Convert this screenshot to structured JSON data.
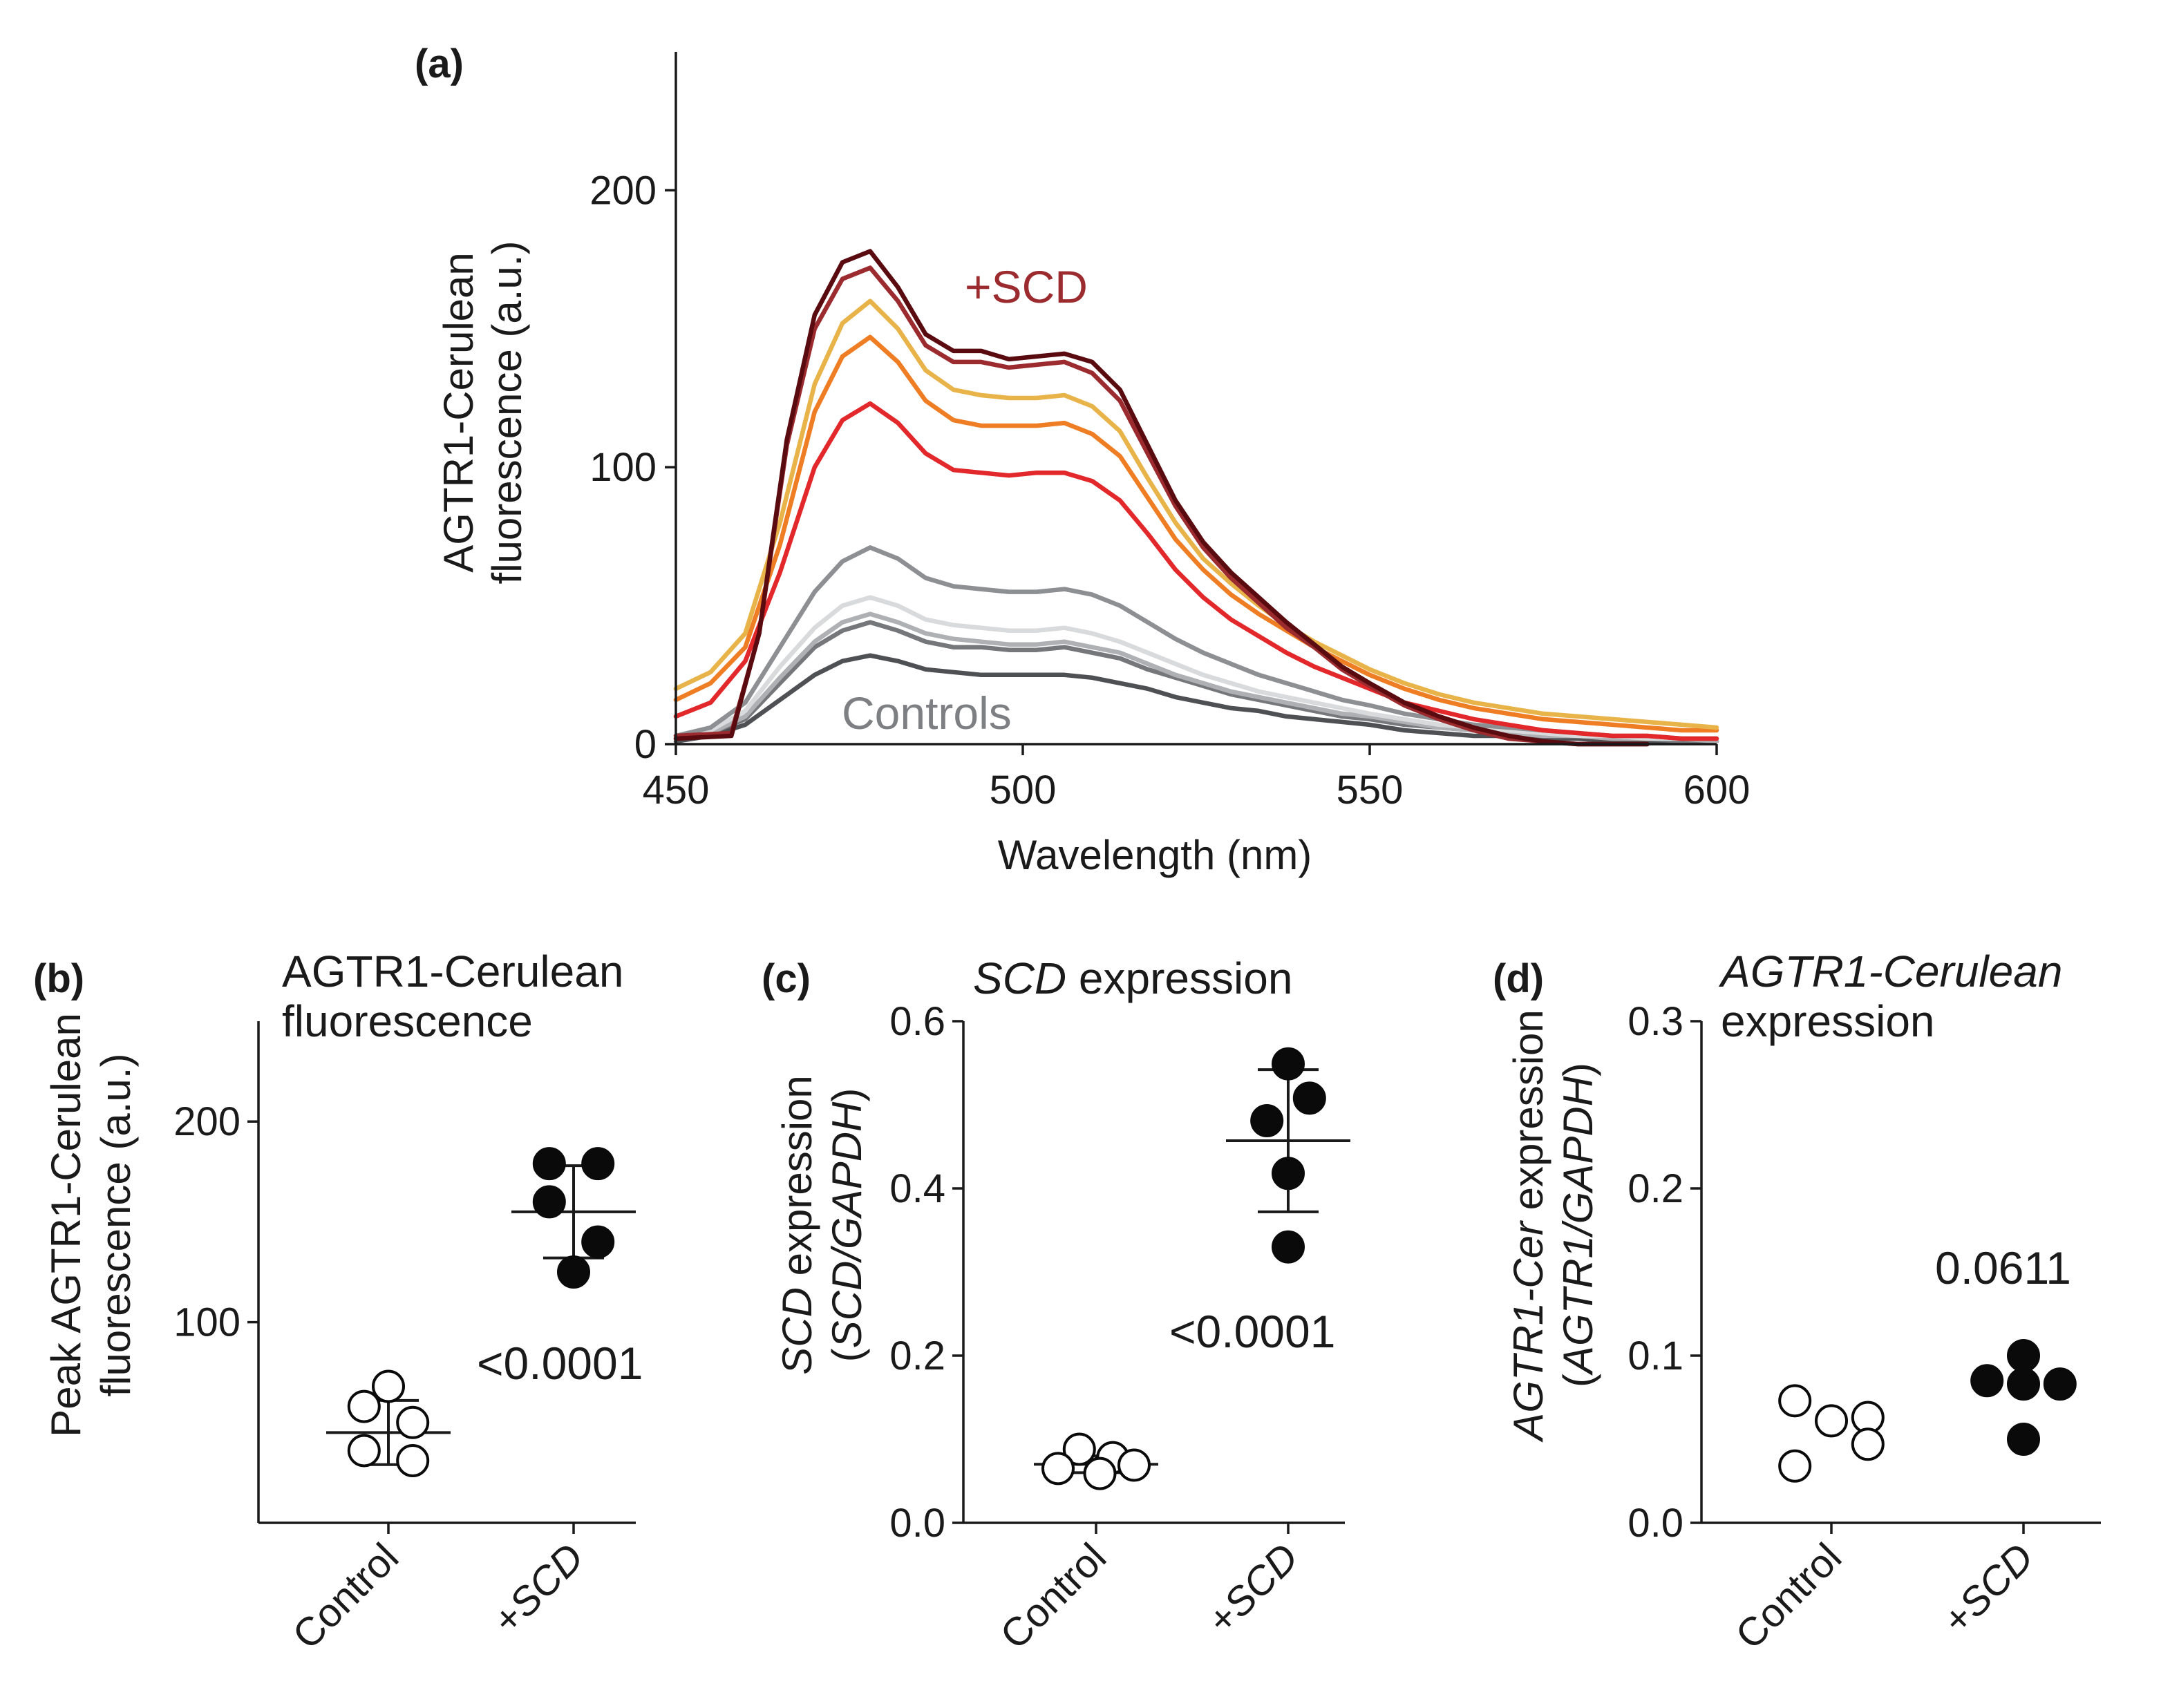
{
  "chart_data": [
    {
      "panel": "(a)",
      "type": "line",
      "xlabel": "Wavelength (nm)",
      "ylabel": [
        "AGTR1-Cerulean",
        "fluorescence (a.u.)"
      ],
      "xlim": [
        450,
        600
      ],
      "ylim": [
        0,
        250
      ],
      "xticks": [
        "450",
        "500",
        "550",
        "600"
      ],
      "yticks": [
        "0",
        "100",
        "200"
      ],
      "annotations": {
        "scd": "+SCD",
        "controls": "Controls"
      },
      "series": [
        {
          "name": "+SCD 1",
          "group": "SCD",
          "color": "#5a0b0f",
          "peak": 178,
          "shoulder": 142,
          "x": [
            450,
            458,
            462,
            466,
            470,
            474,
            478,
            482,
            486,
            490,
            494,
            498,
            502,
            506,
            510,
            514,
            518,
            522,
            526,
            530,
            534,
            538,
            542,
            546,
            550,
            555,
            560,
            565,
            570,
            575,
            580,
            585,
            590
          ],
          "y": [
            2,
            3,
            40,
            110,
            155,
            174,
            178,
            165,
            148,
            142,
            142,
            139,
            140,
            141,
            138,
            128,
            108,
            88,
            73,
            62,
            53,
            44,
            36,
            28,
            22,
            15,
            10,
            6,
            3,
            1,
            0,
            0,
            0
          ]
        },
        {
          "name": "+SCD 2",
          "group": "SCD",
          "color": "#9b2b2e",
          "peak": 172,
          "shoulder": 138,
          "x": [
            450,
            458,
            462,
            466,
            470,
            474,
            478,
            482,
            486,
            490,
            494,
            498,
            502,
            506,
            510,
            514,
            518,
            522,
            526,
            530,
            534,
            538,
            542,
            546,
            550,
            555,
            560,
            565,
            570,
            575,
            580,
            585,
            590
          ],
          "y": [
            3,
            4,
            40,
            108,
            150,
            168,
            172,
            160,
            144,
            138,
            138,
            136,
            137,
            138,
            134,
            124,
            105,
            86,
            71,
            60,
            51,
            42,
            35,
            27,
            21,
            14,
            9,
            5,
            2,
            1,
            0,
            0,
            0
          ]
        },
        {
          "name": "+SCD 3",
          "group": "SCD",
          "color": "#e8b44a",
          "peak": 160,
          "shoulder": 125,
          "x": [
            450,
            455,
            460,
            465,
            470,
            474,
            478,
            482,
            486,
            490,
            494,
            498,
            502,
            506,
            510,
            514,
            518,
            522,
            526,
            530,
            534,
            538,
            542,
            546,
            550,
            555,
            560,
            565,
            570,
            575,
            580,
            585,
            590,
            595,
            600
          ],
          "y": [
            20,
            26,
            40,
            80,
            130,
            152,
            160,
            150,
            135,
            128,
            126,
            125,
            125,
            126,
            122,
            113,
            96,
            80,
            67,
            58,
            50,
            43,
            37,
            32,
            27,
            22,
            18,
            15,
            13,
            11,
            10,
            9,
            8,
            7,
            6
          ]
        },
        {
          "name": "+SCD 4",
          "group": "SCD",
          "color": "#ee7d24",
          "peak": 147,
          "shoulder": 115,
          "x": [
            450,
            455,
            460,
            465,
            470,
            474,
            478,
            482,
            486,
            490,
            494,
            498,
            502,
            506,
            510,
            514,
            518,
            522,
            526,
            530,
            534,
            538,
            542,
            546,
            550,
            555,
            560,
            565,
            570,
            575,
            580,
            585,
            590,
            595,
            600
          ],
          "y": [
            16,
            22,
            35,
            72,
            120,
            140,
            147,
            138,
            124,
            117,
            115,
            115,
            115,
            116,
            112,
            104,
            89,
            74,
            63,
            54,
            47,
            41,
            35,
            30,
            25,
            20,
            16,
            13,
            11,
            9,
            8,
            7,
            6,
            5,
            5
          ]
        },
        {
          "name": "+SCD 5",
          "group": "SCD",
          "color": "#e2282a",
          "peak": 123,
          "shoulder": 98,
          "x": [
            450,
            455,
            460,
            465,
            470,
            474,
            478,
            482,
            486,
            490,
            494,
            498,
            502,
            506,
            510,
            514,
            518,
            522,
            526,
            530,
            534,
            538,
            542,
            546,
            550,
            555,
            560,
            565,
            570,
            575,
            580,
            585,
            590,
            595,
            600
          ],
          "y": [
            10,
            15,
            30,
            62,
            100,
            117,
            123,
            116,
            105,
            99,
            98,
            97,
            98,
            98,
            95,
            88,
            76,
            63,
            53,
            45,
            39,
            33,
            28,
            24,
            20,
            15,
            12,
            9,
            7,
            5,
            4,
            3,
            3,
            2,
            2
          ]
        },
        {
          "name": "Control 1",
          "group": "Control",
          "color": "#8d8f93",
          "peak": 71,
          "shoulder": 56,
          "x": [
            450,
            455,
            460,
            465,
            470,
            474,
            478,
            482,
            486,
            490,
            494,
            498,
            502,
            506,
            510,
            514,
            518,
            522,
            526,
            530,
            534,
            538,
            542,
            546,
            550,
            555,
            560,
            565,
            570,
            575,
            580,
            585,
            590,
            595,
            600
          ],
          "y": [
            3,
            6,
            15,
            35,
            55,
            66,
            71,
            67,
            60,
            57,
            56,
            55,
            55,
            56,
            54,
            50,
            44,
            38,
            33,
            29,
            25,
            22,
            19,
            16,
            14,
            11,
            9,
            7,
            6,
            5,
            4,
            3,
            3,
            2,
            2
          ]
        },
        {
          "name": "Control 2",
          "group": "Control",
          "color": "#d9dadb",
          "peak": 53,
          "shoulder": 42,
          "x": [
            450,
            455,
            460,
            465,
            470,
            474,
            478,
            482,
            486,
            490,
            494,
            498,
            502,
            506,
            510,
            514,
            518,
            522,
            526,
            530,
            534,
            538,
            542,
            546,
            550,
            555,
            560,
            565,
            570,
            575,
            580,
            585,
            590,
            595,
            600
          ],
          "y": [
            2,
            5,
            12,
            28,
            42,
            50,
            53,
            50,
            45,
            43,
            42,
            41,
            41,
            42,
            40,
            37,
            33,
            29,
            25,
            22,
            19,
            17,
            15,
            13,
            11,
            9,
            7,
            6,
            5,
            4,
            3,
            3,
            2,
            2,
            2
          ]
        },
        {
          "name": "Control 3",
          "group": "Control",
          "color": "#aeb0b3",
          "peak": 47,
          "shoulder": 37,
          "x": [
            450,
            455,
            460,
            465,
            470,
            474,
            478,
            482,
            486,
            490,
            494,
            498,
            502,
            506,
            510,
            514,
            518,
            522,
            526,
            530,
            534,
            538,
            542,
            546,
            550,
            555,
            560,
            565,
            570,
            575,
            580,
            585,
            590,
            595,
            600
          ],
          "y": [
            2,
            4,
            10,
            24,
            37,
            44,
            47,
            44,
            40,
            38,
            37,
            36,
            36,
            37,
            35,
            33,
            29,
            25,
            22,
            19,
            17,
            15,
            13,
            11,
            10,
            8,
            6,
            5,
            4,
            3,
            3,
            2,
            2,
            2,
            1
          ]
        },
        {
          "name": "Control 4",
          "group": "Control",
          "color": "#75777b",
          "peak": 44,
          "shoulder": 35,
          "x": [
            450,
            455,
            460,
            465,
            470,
            474,
            478,
            482,
            486,
            490,
            494,
            498,
            502,
            506,
            510,
            514,
            518,
            522,
            526,
            530,
            534,
            538,
            542,
            546,
            550,
            555,
            560,
            565,
            570,
            575,
            580,
            585,
            590,
            595,
            600
          ],
          "y": [
            2,
            4,
            9,
            22,
            35,
            41,
            44,
            41,
            37,
            35,
            35,
            34,
            34,
            35,
            33,
            31,
            27,
            24,
            21,
            18,
            16,
            14,
            12,
            10,
            9,
            7,
            6,
            5,
            4,
            3,
            3,
            2,
            2,
            1,
            1
          ]
        },
        {
          "name": "Control 5",
          "group": "Control",
          "color": "#4e5054",
          "peak": 32,
          "shoulder": 25,
          "x": [
            450,
            455,
            460,
            465,
            470,
            474,
            478,
            482,
            486,
            490,
            494,
            498,
            502,
            506,
            510,
            514,
            518,
            522,
            526,
            530,
            534,
            538,
            542,
            546,
            550,
            555,
            560,
            565,
            570,
            575,
            580,
            585,
            590,
            595,
            600
          ],
          "y": [
            1,
            3,
            7,
            16,
            25,
            30,
            32,
            30,
            27,
            26,
            25,
            25,
            25,
            25,
            24,
            22,
            20,
            17,
            15,
            13,
            12,
            10,
            9,
            8,
            7,
            5,
            4,
            3,
            3,
            2,
            2,
            1,
            1,
            1,
            1
          ]
        }
      ]
    },
    {
      "panel": "(b)",
      "type": "scatter",
      "title": [
        "AGTR1-Cerulean",
        "fluorescence"
      ],
      "ylabel": [
        "Peak AGTR1-Cerulean",
        "fluorescence (a.u.)"
      ],
      "ylim": [
        0,
        250
      ],
      "yticks": [
        "100",
        "200"
      ],
      "categories": [
        "Control",
        "+SCD"
      ],
      "series": [
        {
          "name": "Control",
          "filled": false,
          "values": [
            68,
            58,
            50,
            36,
            31
          ],
          "offsets": [
            0,
            -0.32,
            0.32,
            -0.32,
            0.32
          ],
          "mean": 45,
          "sd": 16
        },
        {
          "name": "+SCD",
          "filled": true,
          "values": [
            179,
            179,
            160,
            140,
            125
          ],
          "offsets": [
            -0.32,
            0.32,
            -0.32,
            0.32,
            0
          ],
          "mean": 155,
          "sd": 23
        }
      ],
      "pvalue": "<0.0001"
    },
    {
      "panel": "(c)",
      "type": "scatter",
      "title": [
        "SCD",
        " expression"
      ],
      "ylabel": [
        "SCD",
        " expression",
        "(",
        "SCD/GAPDH",
        ")"
      ],
      "ylim": [
        0,
        0.6
      ],
      "yticks": [
        "0.0",
        "0.2",
        "0.4",
        "0.6"
      ],
      "categories": [
        "Control",
        "+SCD"
      ],
      "series": [
        {
          "name": "Control",
          "filled": false,
          "values": [
            0.088,
            0.078,
            0.069,
            0.065,
            0.059
          ],
          "offsets": [
            -0.22,
            0.22,
            0.5,
            -0.5,
            0.05
          ],
          "mean": 0.07,
          "sd": 0.01
        },
        {
          "name": "+SCD",
          "filled": true,
          "values": [
            0.549,
            0.508,
            0.481,
            0.418,
            0.33
          ],
          "offsets": [
            0,
            0.28,
            -0.28,
            0,
            0
          ],
          "mean": 0.457,
          "sd": 0.085
        }
      ],
      "pvalue": "<0.0001"
    },
    {
      "panel": "(d)",
      "type": "scatter",
      "title": [
        "AGTR1-Cerulean",
        "expression"
      ],
      "ylabel": [
        "AGTR1-Cer",
        " expression",
        "(",
        "AGTR1/GAPDH",
        ")"
      ],
      "ylim": [
        0,
        0.3
      ],
      "yticks": [
        "0.0",
        "0.1",
        "0.2",
        "0.3"
      ],
      "categories": [
        "Control",
        "+SCD"
      ],
      "series": [
        {
          "name": "Control",
          "filled": false,
          "values": [
            0.073,
            0.063,
            0.061,
            0.047,
            0.034
          ],
          "offsets": [
            -0.48,
            0.48,
            0,
            0.48,
            -0.48
          ]
        },
        {
          "name": "+SCD",
          "filled": true,
          "values": [
            0.1,
            0.085,
            0.083,
            0.083,
            0.05
          ],
          "offsets": [
            0,
            -0.48,
            0.48,
            0,
            0
          ]
        }
      ],
      "pvalue": "0.0611"
    }
  ]
}
